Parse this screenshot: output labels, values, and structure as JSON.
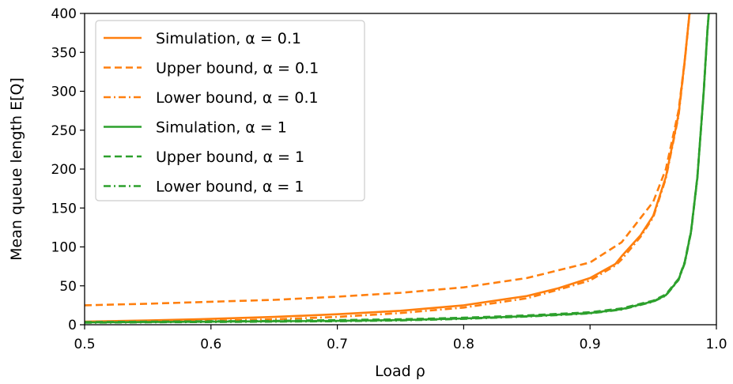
{
  "chart_data": {
    "type": "line",
    "xlabel": "Load ρ",
    "ylabel": "Mean queue length E[Q]",
    "xlim": [
      0.5,
      1.0
    ],
    "ylim": [
      0,
      400
    ],
    "xticks": [
      "0.5",
      "0.6",
      "0.7",
      "0.8",
      "0.9",
      "1.0"
    ],
    "yticks": [
      "0",
      "50",
      "100",
      "150",
      "200",
      "250",
      "300",
      "350",
      "400"
    ],
    "grid": false,
    "legend_position": "top-left",
    "colors": {
      "orange": "#ff7f0e",
      "green": "#2ca02c"
    },
    "series": [
      {
        "name": "Simulation, α = 0.1",
        "color": "#ff7f0e",
        "dash": "solid",
        "x": [
          0.5,
          0.55,
          0.6,
          0.65,
          0.7,
          0.75,
          0.8,
          0.85,
          0.875,
          0.9,
          0.92,
          0.925,
          0.94,
          0.95,
          0.96,
          0.97,
          0.975,
          0.98
        ],
        "y": [
          4,
          5.5,
          7.5,
          10,
          13.5,
          18,
          25,
          37,
          47,
          60,
          78,
          88,
          115,
          140,
          190,
          270,
          340,
          420
        ]
      },
      {
        "name": "Upper bound, α = 0.1",
        "color": "#ff7f0e",
        "dash": "dashed",
        "x": [
          0.5,
          0.55,
          0.6,
          0.65,
          0.7,
          0.75,
          0.8,
          0.85,
          0.9,
          0.925,
          0.95,
          0.96,
          0.97,
          0.975,
          0.98
        ],
        "y": [
          25,
          27,
          29.5,
          32,
          36,
          41,
          48,
          60,
          80,
          106,
          158,
          200,
          275,
          340,
          420
        ]
      },
      {
        "name": "Lower bound, α = 0.1",
        "color": "#ff7f0e",
        "dash": "dashdot",
        "x": [
          0.5,
          0.55,
          0.6,
          0.65,
          0.7,
          0.75,
          0.8,
          0.85,
          0.875,
          0.9,
          0.92,
          0.925,
          0.94,
          0.95,
          0.96,
          0.97,
          0.975,
          0.98
        ],
        "y": [
          3,
          3.8,
          5,
          7,
          10,
          15,
          22,
          34,
          45,
          57,
          76,
          84,
          113,
          138,
          188,
          268,
          338,
          420
        ]
      },
      {
        "name": "Simulation, α = 1",
        "color": "#2ca02c",
        "dash": "solid",
        "x": [
          0.5,
          0.55,
          0.6,
          0.65,
          0.7,
          0.75,
          0.8,
          0.85,
          0.9,
          0.925,
          0.95,
          0.96,
          0.97,
          0.975,
          0.98,
          0.985,
          0.99,
          0.993,
          0.995
        ],
        "y": [
          3,
          3.5,
          4,
          4.5,
          5,
          6,
          8,
          11,
          15,
          20,
          30,
          38,
          58,
          80,
          120,
          190,
          300,
          380,
          420
        ]
      },
      {
        "name": "Upper bound, α = 1",
        "color": "#2ca02c",
        "dash": "dashed",
        "x": [
          0.5,
          0.55,
          0.6,
          0.65,
          0.7,
          0.75,
          0.8,
          0.85,
          0.9,
          0.925,
          0.95,
          0.96,
          0.97,
          0.975,
          0.98,
          0.985,
          0.99,
          0.993,
          0.995
        ],
        "y": [
          3.5,
          4,
          4.5,
          5,
          6,
          7,
          9,
          12,
          16,
          21,
          31,
          39,
          59,
          81,
          121,
          191,
          301,
          381,
          420
        ]
      },
      {
        "name": "Lower bound, α = 1",
        "color": "#2ca02c",
        "dash": "dashdot",
        "x": [
          0.5,
          0.55,
          0.6,
          0.65,
          0.7,
          0.75,
          0.8,
          0.85,
          0.9,
          0.925,
          0.95,
          0.96,
          0.97,
          0.975,
          0.98,
          0.985,
          0.99,
          0.993,
          0.995
        ],
        "y": [
          2.5,
          3,
          3.5,
          4,
          4.5,
          5.5,
          7.5,
          10.5,
          14.5,
          19.5,
          29.5,
          37.5,
          57.5,
          79,
          119,
          189,
          299,
          379,
          420
        ]
      }
    ]
  }
}
